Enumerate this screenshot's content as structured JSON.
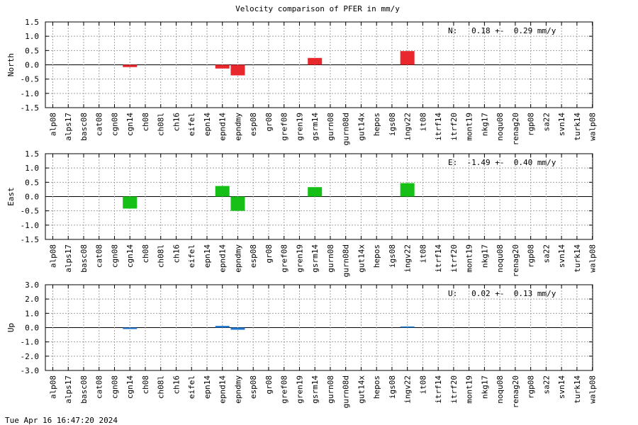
{
  "title": "Velocity comparison of PFER in mm/y",
  "timestamp": "Tue Apr 16 16:47:20 2024",
  "chart_data": [
    {
      "type": "bar",
      "ylabel": "North",
      "ylim": [
        -1.5,
        1.5
      ],
      "yticks": [
        "1.5",
        "1.0",
        "0.5",
        "0.0",
        "-0.5",
        "-1.0",
        "-1.5"
      ],
      "grid": true,
      "color": "#e8282c",
      "stat_text": "N:   0.18 +-  0.29 mm/y",
      "categories": [
        "alp08",
        "alps17",
        "basc08",
        "cat08",
        "cgn08",
        "cgn14",
        "ch08",
        "ch08l",
        "ch16",
        "eifel",
        "epn14",
        "epnd14",
        "epndmy",
        "esp08",
        "gr08",
        "gref08",
        "gren19",
        "gsrm14",
        "gurn08",
        "gurn08d",
        "gut14x",
        "hepos",
        "igs08",
        "ingv22",
        "it08",
        "itrf14",
        "itrf20",
        "mont19",
        "nkg17",
        "noqu08",
        "renag20",
        "rgp08",
        "sa22",
        "svn14",
        "turk14",
        "walp08"
      ],
      "values": [
        null,
        null,
        null,
        null,
        null,
        -0.08,
        null,
        null,
        null,
        null,
        null,
        -0.13,
        -0.37,
        null,
        null,
        null,
        null,
        0.24,
        null,
        null,
        null,
        null,
        null,
        0.48,
        null,
        null,
        null,
        null,
        null,
        null,
        null,
        null,
        null,
        null,
        null,
        null
      ]
    },
    {
      "type": "bar",
      "ylabel": "East",
      "ylim": [
        -1.5,
        1.5
      ],
      "yticks": [
        "1.5",
        "1.0",
        "0.5",
        "0.0",
        "-0.5",
        "-1.0",
        "-1.5"
      ],
      "grid": true,
      "color": "#16c016",
      "stat_text": "E:  -1.49 +-  0.40 mm/y",
      "categories": [
        "alp08",
        "alps17",
        "basc08",
        "cat08",
        "cgn08",
        "cgn14",
        "ch08",
        "ch08l",
        "ch16",
        "eifel",
        "epn14",
        "epnd14",
        "epndmy",
        "esp08",
        "gr08",
        "gref08",
        "gren19",
        "gsrm14",
        "gurn08",
        "gurn08d",
        "gut14x",
        "hepos",
        "igs08",
        "ingv22",
        "it08",
        "itrf14",
        "itrf20",
        "mont19",
        "nkg17",
        "noqu08",
        "renag20",
        "rgp08",
        "sa22",
        "svn14",
        "turk14",
        "walp08"
      ],
      "values": [
        null,
        null,
        null,
        null,
        null,
        -0.42,
        null,
        null,
        null,
        null,
        null,
        0.37,
        -0.5,
        null,
        null,
        null,
        null,
        0.33,
        null,
        null,
        null,
        null,
        null,
        0.47,
        null,
        null,
        null,
        null,
        null,
        null,
        null,
        null,
        null,
        null,
        null,
        null
      ]
    },
    {
      "type": "bar",
      "ylabel": "Up",
      "ylim": [
        -3.0,
        3.0
      ],
      "yticks": [
        "3.0",
        "2.0",
        "1.0",
        "0.0",
        "-1.0",
        "-2.0",
        "-3.0"
      ],
      "grid": true,
      "color": "#1f78d0",
      "stat_text": "U:   0.02 +-  0.13 mm/y",
      "categories": [
        "alp08",
        "alps17",
        "basc08",
        "cat08",
        "cgn08",
        "cgn14",
        "ch08",
        "ch08l",
        "ch16",
        "eifel",
        "epn14",
        "epnd14",
        "epndmy",
        "esp08",
        "gr08",
        "gref08",
        "gren19",
        "gsrm14",
        "gurn08",
        "gurn08d",
        "gut14x",
        "hepos",
        "igs08",
        "ingv22",
        "it08",
        "itrf14",
        "itrf20",
        "mont19",
        "nkg17",
        "noqu08",
        "renag20",
        "rgp08",
        "sa22",
        "svn14",
        "turk14",
        "walp08"
      ],
      "values": [
        null,
        null,
        null,
        null,
        null,
        -0.1,
        null,
        null,
        null,
        null,
        null,
        0.12,
        -0.15,
        null,
        null,
        null,
        null,
        null,
        null,
        null,
        null,
        null,
        null,
        0.08,
        null,
        null,
        null,
        null,
        null,
        null,
        null,
        null,
        null,
        null,
        null,
        null
      ]
    }
  ]
}
